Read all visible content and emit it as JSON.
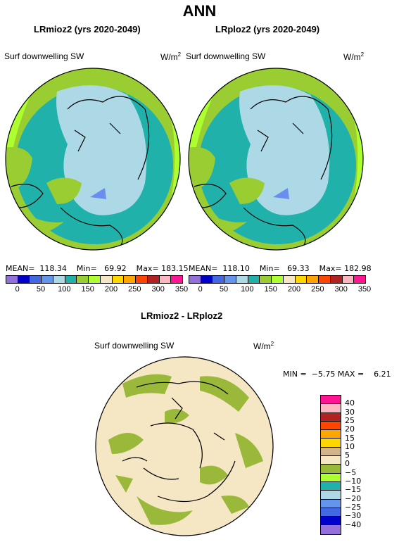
{
  "title": "ANN",
  "panels": [
    {
      "title": "LRmioz2 (yrs 2020-2049)",
      "variable": "Surf downwelling SW",
      "units": "W/m",
      "units_sup": "2",
      "mean_label": "MEAN=",
      "mean": "118.34",
      "min_label": "Min=",
      "min": "69.92",
      "max_label": "Max=",
      "max": "183.15"
    },
    {
      "title": "LRploz2 (yrs 2020-2049)",
      "variable": "Surf downwelling SW",
      "units": "W/m",
      "units_sup": "2",
      "mean_label": "MEAN=",
      "mean": "118.10",
      "min_label": "Min=",
      "min": "69.33",
      "max_label": "Max=",
      "max": "182.98"
    }
  ],
  "colorbar_top": {
    "colors": [
      "#9370db",
      "#0000cd",
      "#4169e1",
      "#6495ed",
      "#add8e6",
      "#20b2aa",
      "#9acd32",
      "#adff2f",
      "#f5e6c4",
      "#ffd700",
      "#ffa500",
      "#ff4500",
      "#b22222",
      "#ffb6c1",
      "#ff1493"
    ],
    "ticks": [
      "0",
      "50",
      "100",
      "150",
      "200",
      "250",
      "300",
      "350"
    ]
  },
  "diff_panel": {
    "title": "LRmioz2 - LRploz2",
    "variable": "Surf downwelling SW",
    "units": "W/m",
    "units_sup": "2",
    "min_label": "MIN =",
    "min": "−5.75",
    "max_label": "MAX =",
    "max": "6.21"
  },
  "colorbar_diff": {
    "colors": [
      "#ff1493",
      "#ffb6c1",
      "#b22222",
      "#ff4500",
      "#ffa500",
      "#ffd700",
      "#d2b48c",
      "#f5e6c4",
      "#9ab83a",
      "#adff2f",
      "#20b2aa",
      "#add8e6",
      "#6495ed",
      "#4169e1",
      "#0000cd",
      "#9370db"
    ],
    "ticks": [
      "40",
      "30",
      "25",
      "20",
      "15",
      "10",
      "5",
      "0",
      "−5",
      "−10",
      "−15",
      "−20",
      "−25",
      "−30",
      "−40"
    ]
  },
  "map_colors": {
    "ocean_teal": "#20b2aa",
    "light_blue": "#add8e6",
    "yellow_green": "#9acd32",
    "bright_green": "#adff2f",
    "blue_patch": "#6a8ef0",
    "diff_beige": "#f5e6c4",
    "diff_green": "#9ab83a"
  }
}
